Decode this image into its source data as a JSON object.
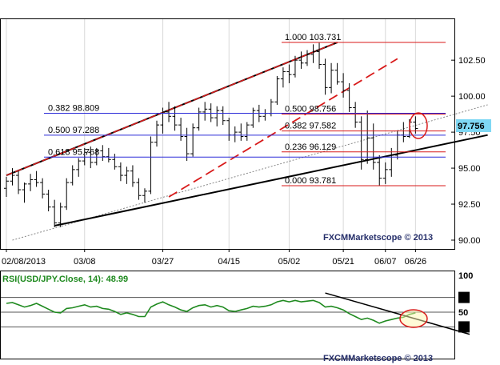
{
  "chart_data": [
    {
      "type": "candlestick",
      "ylim": [
        90.0,
        104.9
      ],
      "y_ticks": [
        "90.00",
        "92.50",
        "95.00",
        "97.50",
        "100.00",
        "102.50"
      ],
      "x_ticks": [
        "02/08/2013",
        "03/08",
        "03/27",
        "04/15",
        "05/02",
        "05/21",
        "06/07",
        "06/26"
      ],
      "current_price": "97.756",
      "watermark": "FXCMMarketscope © 2013",
      "fib_levels": [
        {
          "label": "1.000 103.731",
          "value": 103.731
        },
        {
          "label": "0.500 98.756",
          "value": 98.756
        },
        {
          "label": "0.382 97.582",
          "value": 97.582
        },
        {
          "label": "0.236 96.129",
          "value": 96.129
        },
        {
          "label": "0.000 93.781",
          "value": 93.781
        }
      ],
      "retracement_levels": [
        {
          "label": "0.382 98.809",
          "value": 98.809
        },
        {
          "label": "0.500 97.288",
          "value": 97.288
        },
        {
          "label": "0.618 95.768",
          "value": 95.768
        }
      ],
      "ohlc": [
        [
          93.6,
          94.4,
          93.0,
          94.1
        ],
        [
          94.1,
          95.0,
          93.8,
          94.5
        ],
        [
          94.5,
          94.8,
          93.2,
          93.5
        ],
        [
          93.5,
          94.0,
          92.6,
          93.9
        ],
        [
          93.9,
          94.6,
          93.4,
          94.2
        ],
        [
          94.2,
          94.8,
          93.7,
          94.0
        ],
        [
          94.0,
          94.3,
          92.9,
          93.2
        ],
        [
          93.2,
          93.5,
          92.0,
          92.3
        ],
        [
          92.3,
          92.8,
          90.9,
          91.2
        ],
        [
          91.2,
          92.6,
          90.9,
          92.3
        ],
        [
          92.3,
          94.3,
          92.1,
          94.0
        ],
        [
          94.0,
          95.2,
          93.8,
          94.9
        ],
        [
          94.9,
          95.7,
          94.4,
          95.5
        ],
        [
          95.5,
          96.4,
          95.2,
          96.1
        ],
        [
          96.1,
          96.5,
          95.0,
          95.4
        ],
        [
          95.4,
          96.4,
          95.2,
          96.2
        ],
        [
          96.2,
          96.6,
          95.5,
          95.8
        ],
        [
          95.8,
          96.4,
          95.4,
          95.6
        ],
        [
          95.6,
          96.0,
          94.9,
          95.1
        ],
        [
          95.1,
          95.4,
          94.1,
          94.5
        ],
        [
          94.5,
          95.1,
          93.9,
          94.8
        ],
        [
          94.8,
          95.2,
          93.7,
          94.0
        ],
        [
          94.0,
          94.3,
          92.8,
          93.1
        ],
        [
          93.1,
          93.6,
          92.6,
          93.4
        ],
        [
          93.4,
          97.2,
          93.2,
          96.8
        ],
        [
          96.8,
          98.3,
          96.5,
          98.0
        ],
        [
          98.0,
          99.2,
          97.4,
          98.9
        ],
        [
          98.9,
          99.6,
          98.2,
          98.6
        ],
        [
          98.6,
          99.3,
          97.6,
          98.0
        ],
        [
          98.0,
          98.5,
          96.9,
          97.2
        ],
        [
          97.2,
          97.8,
          95.5,
          96.0
        ],
        [
          96.0,
          98.1,
          95.8,
          97.8
        ],
        [
          97.8,
          99.2,
          97.6,
          98.9
        ],
        [
          98.9,
          99.6,
          98.3,
          99.1
        ],
        [
          99.1,
          99.5,
          98.2,
          98.5
        ],
        [
          98.5,
          99.3,
          97.9,
          99.0
        ],
        [
          99.0,
          99.3,
          98.0,
          98.3
        ],
        [
          98.3,
          98.5,
          96.9,
          97.3
        ],
        [
          97.3,
          97.9,
          96.8,
          97.5
        ],
        [
          97.5,
          98.1,
          96.9,
          97.2
        ],
        [
          97.2,
          98.2,
          96.9,
          98.0
        ],
        [
          98.0,
          99.2,
          97.8,
          99.0
        ],
        [
          99.0,
          99.4,
          98.2,
          98.6
        ],
        [
          98.6,
          99.1,
          98.3,
          98.8
        ],
        [
          98.8,
          99.8,
          98.6,
          99.6
        ],
        [
          99.6,
          101.4,
          99.4,
          101.2
        ],
        [
          101.2,
          102.0,
          100.6,
          101.7
        ],
        [
          101.7,
          102.2,
          100.9,
          101.5
        ],
        [
          101.5,
          102.8,
          101.3,
          102.5
        ],
        [
          102.5,
          103.1,
          101.9,
          102.3
        ],
        [
          102.3,
          103.2,
          102.1,
          102.9
        ],
        [
          102.9,
          103.6,
          102.3,
          103.1
        ],
        [
          103.1,
          103.7,
          101.9,
          102.2
        ],
        [
          102.2,
          102.6,
          100.1,
          100.6
        ],
        [
          100.6,
          102.3,
          100.2,
          101.8
        ],
        [
          101.8,
          102.3,
          100.8,
          101.0
        ],
        [
          101.0,
          101.6,
          99.9,
          100.4
        ],
        [
          100.4,
          100.9,
          98.9,
          99.2
        ],
        [
          99.2,
          99.6,
          97.8,
          98.2
        ],
        [
          98.2,
          98.6,
          94.9,
          95.6
        ],
        [
          95.6,
          99.0,
          95.3,
          97.1
        ],
        [
          97.1,
          98.1,
          94.9,
          95.4
        ],
        [
          95.4,
          95.9,
          93.8,
          94.3
        ],
        [
          94.3,
          95.4,
          93.9,
          94.9
        ],
        [
          94.9,
          96.4,
          94.4,
          95.9
        ],
        [
          95.9,
          97.6,
          95.6,
          97.3
        ],
        [
          97.3,
          98.2,
          96.8,
          97.2
        ],
        [
          97.2,
          98.4,
          97.1,
          98.2
        ],
        [
          98.2,
          98.6,
          97.4,
          97.756
        ]
      ],
      "resistance_line": [
        [
          0,
          94.5
        ],
        [
          55,
          103.731
        ]
      ],
      "support_line": [
        [
          8,
          91.0
        ],
        [
          80,
          97.3
        ]
      ],
      "support_extension": [
        [
          1,
          90.0
        ],
        [
          80,
          99.4
        ]
      ],
      "dashed_channel": [
        [
          27,
          93.0
        ],
        [
          65,
          102.6
        ]
      ]
    },
    {
      "type": "line",
      "title": "RSI(USD/JPY.Close, 14): 48.99",
      "ylim": [
        0,
        100
      ],
      "y_ticks": [
        "100",
        "50"
      ],
      "levels": [
        30,
        50,
        70
      ],
      "watermark": "FXCMMarketscope © 2013",
      "series": [
        {
          "values": [
            62,
            63,
            60,
            57,
            59,
            62,
            58,
            54,
            50,
            49,
            55,
            56,
            58,
            60,
            57,
            58,
            55,
            54,
            51,
            47,
            49,
            47,
            44,
            44,
            57,
            61,
            64,
            60,
            57,
            53,
            51,
            56,
            59,
            60,
            57,
            59,
            57,
            52,
            51,
            53,
            55,
            58,
            57,
            58,
            60,
            64,
            66,
            64,
            66,
            64,
            65,
            66,
            63,
            57,
            58,
            56,
            53,
            48,
            44,
            40,
            42,
            39,
            35,
            38,
            40,
            42,
            43,
            47,
            49
          ]
        }
      ],
      "trendline": [
        [
          53,
          76
        ],
        [
          77,
          20
        ]
      ]
    }
  ]
}
